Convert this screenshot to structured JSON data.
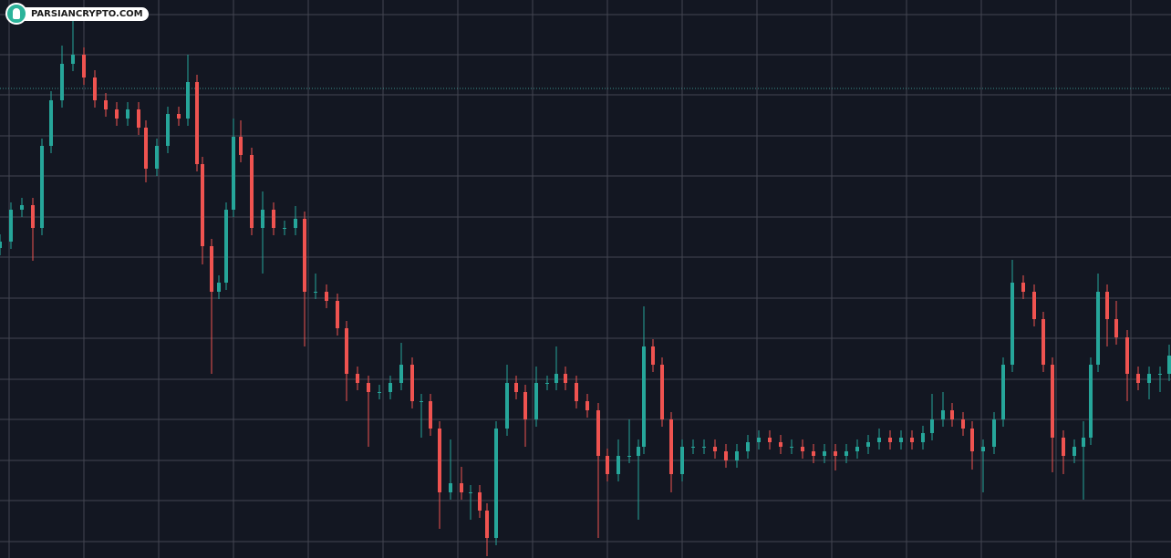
{
  "watermark": "PARSIANCRYPTO.COM",
  "chart_data": {
    "type": "candlestick",
    "x": [
      0,
      12,
      24,
      36,
      46,
      56,
      68,
      80,
      92,
      104,
      116,
      128,
      140,
      152,
      160,
      172,
      184,
      196,
      206,
      216,
      222,
      232,
      240,
      248,
      256,
      264,
      276,
      288,
      300,
      312,
      324,
      334,
      346,
      358,
      370,
      380,
      392,
      404,
      416,
      428,
      440,
      452,
      462,
      472,
      482,
      494,
      506,
      516,
      526,
      534,
      544,
      556,
      566,
      576,
      588,
      600,
      610,
      620,
      632,
      644,
      656,
      666,
      678,
      690,
      700,
      706,
      716,
      726,
      736,
      748,
      760,
      772,
      784,
      796,
      808,
      820,
      832,
      844,
      856,
      868,
      880,
      892,
      904,
      916,
      928,
      940,
      952,
      964,
      976,
      988,
      1000,
      1012,
      1022,
      1034,
      1044,
      1056,
      1066,
      1078,
      1090,
      1100,
      1110,
      1122,
      1134,
      1144,
      1154,
      1166,
      1178,
      1188,
      1196,
      1204,
      1214,
      1224,
      1236,
      1248,
      1260,
      1272,
      1282
    ],
    "open": [
      340,
      347,
      382,
      387,
      362,
      452,
      502,
      542,
      552,
      527,
      502,
      492,
      482,
      492,
      472,
      427,
      452,
      487,
      482,
      522,
      432,
      342,
      292,
      302,
      382,
      462,
      442,
      362,
      382,
      362,
      362,
      372,
      292,
      292,
      282,
      252,
      202,
      192,
      182,
      182,
      192,
      212,
      172,
      172,
      142,
      72,
      82,
      72,
      72,
      52,
      22,
      142,
      192,
      182,
      152,
      192,
      192,
      202,
      192,
      172,
      162,
      112,
      92,
      112,
      112,
      122,
      232,
      212,
      152,
      92,
      122,
      122,
      122,
      117,
      107,
      117,
      127,
      132,
      127,
      122,
      122,
      117,
      112,
      117,
      112,
      117,
      122,
      127,
      132,
      127,
      132,
      127,
      137,
      152,
      162,
      152,
      142,
      117,
      122,
      152,
      212,
      302,
      292,
      262,
      212,
      132,
      112,
      122,
      132,
      212,
      292,
      262,
      242,
      202,
      192,
      202,
      202
    ],
    "high": [
      355,
      390,
      395,
      395,
      460,
      512,
      562,
      592,
      560,
      535,
      510,
      500,
      500,
      500,
      480,
      460,
      495,
      495,
      552,
      530,
      440,
      350,
      310,
      390,
      482,
      480,
      450,
      402,
      390,
      370,
      386,
      380,
      312,
      300,
      290,
      260,
      210,
      200,
      190,
      200,
      236,
      220,
      180,
      180,
      150,
      130,
      100,
      80,
      80,
      60,
      150,
      212,
      200,
      190,
      210,
      200,
      232,
      210,
      200,
      180,
      170,
      120,
      130,
      152,
      130,
      276,
      240,
      220,
      160,
      130,
      130,
      130,
      130,
      125,
      125,
      135,
      140,
      140,
      135,
      130,
      130,
      125,
      125,
      125,
      125,
      130,
      135,
      142,
      140,
      140,
      140,
      145,
      180,
      182,
      170,
      160,
      150,
      130,
      160,
      220,
      327,
      310,
      300,
      270,
      220,
      140,
      130,
      150,
      220,
      312,
      300,
      282,
      250,
      210,
      210,
      210,
      234
    ],
    "low": [
      332,
      339,
      374,
      326,
      354,
      444,
      494,
      534,
      519,
      494,
      484,
      474,
      474,
      464,
      412,
      419,
      444,
      474,
      474,
      424,
      322,
      202,
      284,
      294,
      374,
      434,
      354,
      312,
      354,
      354,
      354,
      232,
      284,
      274,
      244,
      172,
      184,
      122,
      174,
      174,
      184,
      164,
      132,
      134,
      32,
      64,
      64,
      42,
      44,
      2,
      14,
      134,
      174,
      122,
      144,
      184,
      184,
      184,
      164,
      154,
      22,
      84,
      84,
      104,
      42,
      114,
      204,
      144,
      72,
      84,
      114,
      114,
      109,
      99,
      99,
      109,
      119,
      119,
      114,
      114,
      109,
      104,
      104,
      96,
      104,
      109,
      114,
      119,
      119,
      119,
      119,
      119,
      129,
      144,
      144,
      134,
      97,
      72,
      114,
      144,
      204,
      284,
      254,
      204,
      94,
      92,
      104,
      64,
      124,
      204,
      232,
      234,
      172,
      184,
      174,
      182,
      194
    ],
    "close": [
      347,
      382,
      387,
      362,
      452,
      502,
      542,
      552,
      527,
      502,
      492,
      482,
      492,
      472,
      427,
      452,
      487,
      482,
      522,
      432,
      342,
      292,
      302,
      382,
      462,
      442,
      362,
      382,
      362,
      362,
      372,
      292,
      292,
      282,
      252,
      202,
      192,
      182,
      182,
      192,
      212,
      172,
      172,
      142,
      72,
      82,
      72,
      72,
      52,
      22,
      142,
      192,
      182,
      152,
      192,
      192,
      202,
      192,
      172,
      162,
      112,
      92,
      112,
      112,
      122,
      232,
      212,
      152,
      92,
      122,
      122,
      122,
      117,
      107,
      117,
      127,
      132,
      127,
      122,
      122,
      117,
      112,
      117,
      112,
      117,
      122,
      127,
      132,
      127,
      132,
      127,
      137,
      152,
      162,
      152,
      142,
      117,
      122,
      152,
      212,
      302,
      292,
      262,
      212,
      132,
      112,
      122,
      132,
      212,
      292,
      262,
      242,
      202,
      192,
      202,
      202,
      222
    ],
    "up_color": "#26a69a",
    "down_color": "#ef5350",
    "xlim": [
      0,
      1284
    ],
    "ylim": [
      0,
      612
    ],
    "xticks": [
      10,
      92,
      174,
      256,
      338,
      420,
      502,
      584,
      666,
      748,
      830,
      912,
      994,
      1076,
      1158,
      1240
    ],
    "yticks": [
      596,
      552,
      508,
      463,
      419,
      374,
      330,
      285,
      241,
      196,
      152,
      107,
      63,
      18
    ],
    "grid": true,
    "grid_color": "#434651",
    "price_line": 515,
    "price_line_color": "#3a8f8a"
  }
}
